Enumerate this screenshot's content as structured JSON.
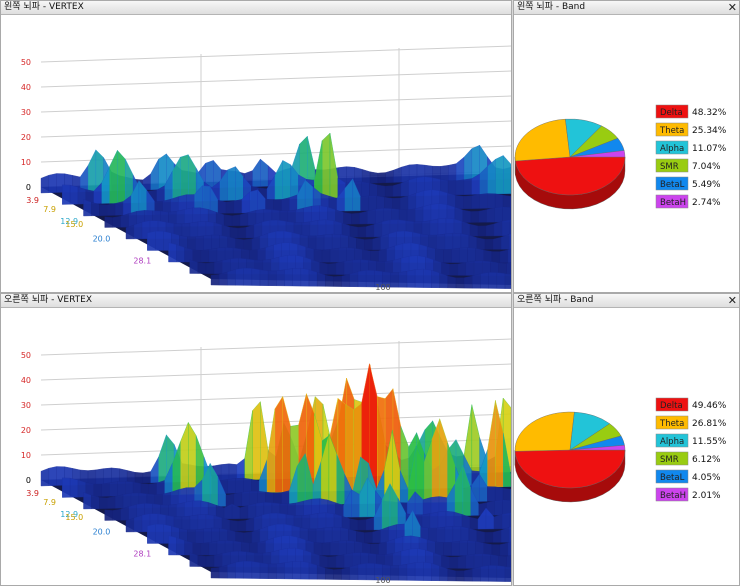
{
  "panels": [
    {
      "title": "왼쪽 뇌파 - VERTEX"
    },
    {
      "title": "왼쪽 뇌파 - Band",
      "close_icon": "close-icon"
    },
    {
      "title": "오른쪽 뇌파 - VERTEX"
    },
    {
      "title": "오른쪽 뇌파 - Band",
      "close_icon": "close-icon"
    }
  ],
  "chart_data": [
    {
      "type": "surface3d",
      "y_ticks": [
        "50",
        "40",
        "30",
        "20",
        "10",
        "0"
      ],
      "y_tick_colors": [
        "#d62828",
        "#d62828",
        "#d62828",
        "#d62828",
        "#d62828",
        "#000000"
      ],
      "freq_ticks": [
        "3.9",
        "7.9",
        "12.9",
        "15.0",
        "20.0",
        "28.1"
      ],
      "freq_tick_colors": [
        "#cc2020",
        "#c8a000",
        "#2aa7c9",
        "#c8a000",
        "#2a7fd0",
        "#b040c0"
      ],
      "x_ticks": [
        "100"
      ],
      "zmax": 50,
      "peaks": [
        {
          "x": 0.12,
          "z": 0.1,
          "height": 18,
          "width": 0.05
        },
        {
          "x": 0.26,
          "z": 0.1,
          "height": 14,
          "width": 0.05
        },
        {
          "x": 0.36,
          "z": 0.1,
          "height": 10,
          "width": 0.04
        },
        {
          "x": 0.47,
          "z": 0.1,
          "height": 12,
          "width": 0.04
        },
        {
          "x": 0.56,
          "z": 0.1,
          "height": 30,
          "width": 0.028
        },
        {
          "x": 0.93,
          "z": 0.1,
          "height": 13,
          "width": 0.06
        }
      ]
    },
    {
      "type": "pie3d",
      "legend": [
        {
          "label": "Delta",
          "value": 48.32,
          "display": "48.32%",
          "color": "#ee1111"
        },
        {
          "label": "Theta",
          "value": 25.34,
          "display": "25.34%",
          "color": "#ffbb00"
        },
        {
          "label": "Alpha",
          "value": 11.07,
          "display": "11.07%",
          "color": "#22c4d8"
        },
        {
          "label": "SMR",
          "value": 7.04,
          "display": "7.04%",
          "color": "#99cc11"
        },
        {
          "label": "BetaL",
          "value": 5.49,
          "display": "5.49%",
          "color": "#1188ee"
        },
        {
          "label": "BetaH",
          "value": 2.74,
          "display": "2.74%",
          "color": "#cc44ee"
        }
      ]
    },
    {
      "type": "surface3d",
      "y_ticks": [
        "50",
        "40",
        "30",
        "20",
        "10",
        "0"
      ],
      "y_tick_colors": [
        "#d62828",
        "#d62828",
        "#d62828",
        "#d62828",
        "#d62828",
        "#000000"
      ],
      "freq_ticks": [
        "3.9",
        "7.9",
        "12.9",
        "15.0",
        "20.0",
        "28.1"
      ],
      "freq_tick_colors": [
        "#cc2020",
        "#c8a000",
        "#2aa7c9",
        "#c8a000",
        "#2a7fd0",
        "#b040c0"
      ],
      "x_ticks": [
        "100"
      ],
      "zmax": 50,
      "peaks": [
        {
          "x": 0.27,
          "z": 0.12,
          "height": 23,
          "width": 0.05
        },
        {
          "x": 0.46,
          "z": 0.08,
          "height": 48,
          "width": 0.04
        },
        {
          "x": 0.52,
          "z": 0.15,
          "height": 37,
          "width": 0.05
        },
        {
          "x": 0.55,
          "z": 0.45,
          "height": 14,
          "width": 0.04
        },
        {
          "x": 0.59,
          "z": 0.08,
          "height": 44,
          "width": 0.05
        },
        {
          "x": 0.65,
          "z": 0.1,
          "height": 49,
          "width": 0.05
        },
        {
          "x": 0.7,
          "z": 0.05,
          "height": 48,
          "width": 0.05
        },
        {
          "x": 0.75,
          "z": 0.25,
          "height": 26,
          "width": 0.05
        },
        {
          "x": 0.83,
          "z": 0.05,
          "height": 20,
          "width": 0.05
        },
        {
          "x": 0.92,
          "z": 0.1,
          "height": 37,
          "width": 0.03
        },
        {
          "x": 0.99,
          "z": 0.05,
          "height": 42,
          "width": 0.03
        }
      ]
    },
    {
      "type": "pie3d",
      "legend": [
        {
          "label": "Delta",
          "value": 49.46,
          "display": "49.46%",
          "color": "#ee1111"
        },
        {
          "label": "Theta",
          "value": 26.81,
          "display": "26.81%",
          "color": "#ffbb00"
        },
        {
          "label": "Alpha",
          "value": 11.55,
          "display": "11.55%",
          "color": "#22c4d8"
        },
        {
          "label": "SMR",
          "value": 6.12,
          "display": "6.12%",
          "color": "#99cc11"
        },
        {
          "label": "BetaL",
          "value": 4.05,
          "display": "4.05%",
          "color": "#1188ee"
        },
        {
          "label": "BetaH",
          "value": 2.01,
          "display": "2.01%",
          "color": "#cc44ee"
        }
      ]
    }
  ]
}
